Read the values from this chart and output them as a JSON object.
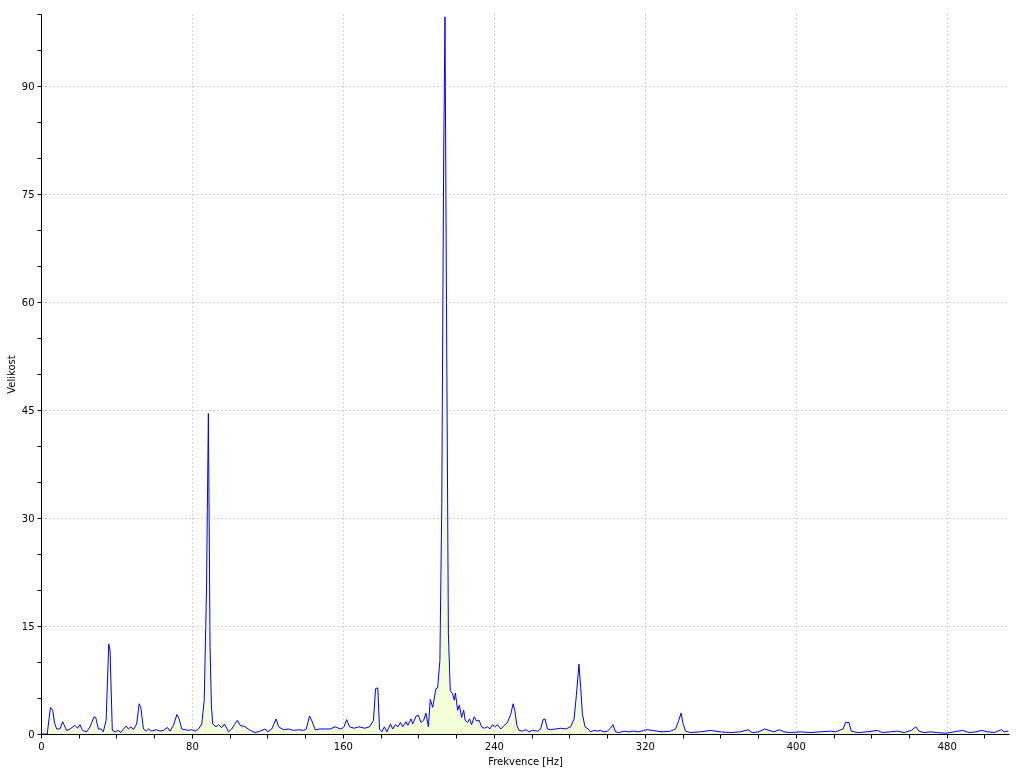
{
  "chart_data": {
    "type": "area",
    "xlabel": "Frekvence [Hz]",
    "ylabel": "Velikost",
    "xlim": [
      0,
      513
    ],
    "ylim": [
      0,
      100
    ],
    "xticks": [
      0,
      {
        "value": 20,
        "label": null
      },
      {
        "value": 40,
        "label": null
      },
      {
        "value": 60,
        "label": null
      },
      80,
      {
        "value": 100,
        "label": null
      },
      {
        "value": 120,
        "label": null
      },
      {
        "value": 140,
        "label": null
      },
      160,
      {
        "value": 180,
        "label": null
      },
      {
        "value": 200,
        "label": null
      },
      {
        "value": 220,
        "label": null
      },
      240,
      {
        "value": 260,
        "label": null
      },
      {
        "value": 280,
        "label": null
      },
      {
        "value": 300,
        "label": null
      },
      320,
      {
        "value": 340,
        "label": null
      },
      {
        "value": 360,
        "label": null
      },
      {
        "value": 380,
        "label": null
      },
      400,
      {
        "value": 420,
        "label": null
      },
      {
        "value": 440,
        "label": null
      },
      {
        "value": 460,
        "label": null
      },
      480,
      {
        "value": 500,
        "label": null
      }
    ],
    "yticks": [
      0,
      {
        "value": 5,
        "label": null
      },
      {
        "value": 10,
        "label": null
      },
      15,
      {
        "value": 20,
        "label": null
      },
      {
        "value": 25,
        "label": null
      },
      30,
      {
        "value": 35,
        "label": null
      },
      {
        "value": 40,
        "label": null
      },
      45,
      {
        "value": 50,
        "label": null
      },
      {
        "value": 55,
        "label": null
      },
      60,
      {
        "value": 65,
        "label": null
      },
      {
        "value": 70,
        "label": null
      },
      75,
      {
        "value": 80,
        "label": null
      },
      {
        "value": 85,
        "label": null
      },
      90,
      {
        "value": 95,
        "label": null
      },
      {
        "value": 100,
        "label": null
      }
    ],
    "grid": true,
    "x": [
      0,
      3.3,
      4.2,
      5.0,
      6.2,
      7.2,
      8.3,
      10.0,
      11.5,
      13.6,
      15.4,
      18.0,
      19.4,
      20.7,
      22.0,
      24.2,
      26.0,
      28.1,
      29.0,
      30.4,
      31.8,
      33.0,
      34.5,
      35.9,
      36.6,
      37.8,
      39.3,
      41.0,
      42.3,
      43.7,
      45.1,
      46.3,
      47.7,
      49.0,
      50.7,
      52.0,
      52.9,
      54.3,
      55.7,
      56.9,
      58.7,
      61.0,
      63.1,
      64.9,
      67.0,
      68.4,
      70.2,
      72.0,
      73.2,
      74.6,
      76.4,
      78.1,
      79.9,
      81.7,
      83.5,
      85.2,
      86.5,
      87.7,
      88.7,
      89.6,
      90.3,
      91.0,
      92.8,
      94.0,
      95.8,
      97.2,
      99.4,
      101.1,
      102.5,
      104.1,
      105.6,
      108.2,
      110.9,
      113.5,
      116.2,
      118.8,
      120.0,
      122.3,
      124.6,
      125.9,
      128.5,
      131.2,
      133.8,
      136.5,
      139.1,
      140.6,
      142.3,
      143.6,
      145.3,
      148.0,
      150.6,
      153.3,
      155.9,
      158.6,
      160.4,
      162.0,
      163.5,
      166.0,
      168.5,
      171.5,
      174.1,
      176.2,
      177.3,
      178.5,
      179.4,
      180.6,
      182.0,
      183.3,
      185.2,
      186.4,
      187.8,
      189.1,
      190.5,
      191.7,
      193.5,
      194.4,
      196.1,
      197.0,
      198.8,
      200.0,
      201.4,
      202.8,
      204.0,
      205.3,
      206.3,
      207.6,
      209.3,
      210.2,
      211.4,
      212.4,
      213.4,
      214.1,
      215.0,
      215.9,
      216.9,
      218.1,
      219.0,
      219.6,
      220.8,
      221.7,
      222.9,
      224.0,
      224.8,
      226.1,
      227.1,
      228.2,
      229.6,
      230.8,
      232.2,
      233.5,
      234.9,
      236.6,
      237.9,
      239.3,
      240.7,
      241.9,
      243.7,
      245.5,
      247.2,
      249.0,
      250.2,
      251.1,
      252.2,
      253.4,
      255.2,
      256.9,
      258.7,
      260.4,
      263.1,
      264.8,
      266.1,
      267.1,
      268.4,
      270.1,
      272.8,
      275.4,
      278.1,
      280.7,
      282.5,
      283.7,
      285.1,
      286.0,
      286.9,
      288.3,
      289.9,
      291.3,
      293.0,
      294.8,
      296.6,
      298.3,
      300.1,
      301.8,
      303.1,
      304.5,
      306.2,
      308.9,
      311.5,
      314.2,
      316.8,
      319.5,
      321.2,
      323.9,
      326.5,
      329.2,
      333.6,
      336.3,
      338.0,
      339.2,
      340.3,
      341.6,
      344.2,
      349.5,
      354.8,
      360.1,
      365.4,
      370.7,
      374.8,
      376.9,
      380.5,
      383.5,
      385.8,
      388.4,
      391.4,
      393.7,
      397.2,
      402.5,
      407.8,
      413.1,
      418.4,
      421.1,
      425.1,
      426.4,
      428.2,
      429.4,
      432.6,
      437.9,
      443.2,
      445.9,
      450.3,
      453.8,
      457.4,
      461.3,
      463.6,
      465.3,
      468.0,
      471.5,
      475.1,
      479.5,
      483.9,
      488.3,
      491.9,
      495.4,
      498.6,
      501.6,
      505.1,
      509.0,
      510.4,
      512.5
    ],
    "series": [
      {
        "color": "#eefcc8",
        "values": [
          0,
          0,
          2.0,
          3.7,
          3.3,
          1.5,
          0.7,
          0.7,
          1.7,
          0.5,
          0.7,
          1.2,
          0.8,
          1.3,
          0.5,
          0.3,
          1.0,
          2.4,
          2.3,
          0.7,
          0.7,
          0.3,
          1.9,
          12.5,
          11.6,
          0.5,
          0.3,
          0.5,
          0.2,
          0.7,
          1.1,
          0.7,
          1.0,
          0.6,
          1.4,
          4.2,
          3.7,
          0.7,
          0.4,
          0.7,
          0.4,
          0.6,
          0.4,
          0.5,
          0.9,
          0.4,
          1.2,
          2.7,
          2.1,
          0.7,
          0.6,
          0.5,
          0.6,
          0.4,
          0.7,
          1.4,
          4.7,
          20,
          44.5,
          12,
          4,
          1.4,
          1.0,
          1.3,
          0.9,
          1.4,
          0.3,
          0.7,
          1.3,
          1.9,
          1.2,
          1.0,
          0.5,
          0.2,
          0.4,
          0.7,
          0.3,
          0.7,
          2.1,
          1.0,
          0.6,
          0.7,
          0.5,
          0.6,
          0.5,
          0.7,
          2.5,
          1.8,
          0.6,
          0.7,
          0.7,
          0.7,
          1.0,
          0.7,
          0.9,
          2.0,
          1.0,
          0.8,
          1.0,
          0.8,
          1.0,
          1.9,
          6.3,
          6.4,
          0.7,
          0.3,
          1.0,
          0.3,
          1.4,
          0.7,
          1.3,
          1.0,
          1.6,
          1.0,
          1.7,
          1.2,
          2.1,
          1.4,
          2.5,
          2.6,
          1.6,
          1.9,
          2.9,
          1.0,
          4.8,
          3.7,
          6.3,
          6.4,
          10.2,
          32,
          80,
          99.6,
          55,
          14,
          6,
          5.6,
          4.7,
          5.7,
          3.3,
          4.0,
          2.3,
          3.3,
          1.9,
          1.6,
          2.1,
          1.3,
          2.4,
          1.8,
          1.9,
          1.0,
          0.8,
          1.0,
          0.7,
          1.3,
          1.0,
          1.3,
          0.7,
          1.2,
          1.6,
          2.8,
          4.2,
          3.3,
          1.2,
          0.5,
          0.4,
          0.6,
          0.3,
          0.5,
          0.4,
          0.7,
          2.0,
          2.1,
          0.7,
          0.6,
          0.7,
          0.8,
          0.7,
          1.0,
          2.1,
          5.3,
          9.7,
          6.5,
          2.8,
          1.0,
          0.7,
          0.3,
          0.5,
          0.4,
          0.5,
          0.3,
          0.4,
          0.8,
          1.3,
          0.3,
          0.2,
          0.4,
          0.3,
          0.4,
          0.3,
          0.5,
          0.6,
          0.5,
          0.4,
          0.3,
          0.4,
          0.7,
          1.9,
          2.9,
          1.4,
          0.4,
          0.2,
          0.3,
          0.5,
          0.3,
          0.2,
          0.3,
          0.6,
          0.2,
          0.3,
          0.7,
          0.5,
          0.3,
          0.6,
          0.3,
          0.2,
          0.3,
          0.2,
          0.3,
          0.4,
          0.3,
          0.7,
          1.6,
          1.6,
          0.4,
          0.2,
          0.3,
          0.5,
          0.2,
          0.3,
          0.4,
          0.2,
          0.5,
          1.0,
          0.4,
          0.2,
          0.3,
          0.2,
          0.1,
          0.3,
          0.5,
          0.2,
          0.3,
          0.5,
          0.3,
          0.2,
          0.6,
          0.3,
          0.4
        ]
      }
    ]
  }
}
